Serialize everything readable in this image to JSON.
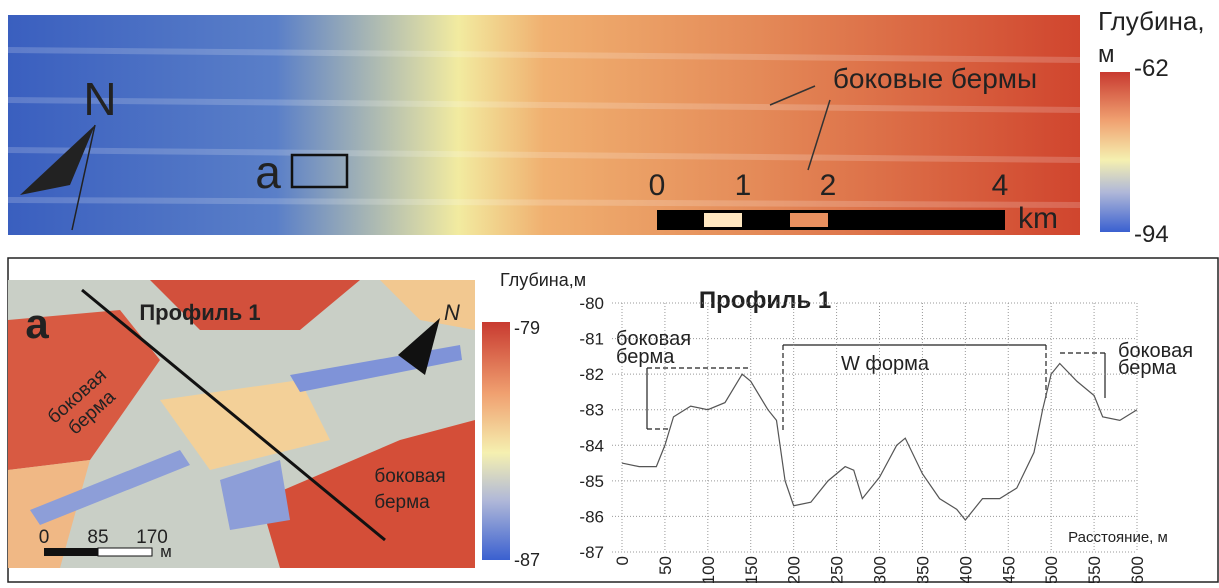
{
  "map": {
    "north": "N",
    "area_label": "a",
    "annotation": "боковые бермы",
    "scale_labels": [
      0,
      1,
      2,
      4
    ],
    "scale_unit": "km",
    "legend_title": "Глубина,",
    "legend_unit": "м",
    "legend_max": -62,
    "legend_min": -94
  },
  "inset": {
    "label": "a",
    "profile_label": "Профиль 1",
    "annotations": [
      [
        "боковая",
        "берма"
      ],
      [
        "боковая",
        "берма"
      ]
    ],
    "scale_labels": [
      0,
      85,
      170
    ],
    "scale_unit": "м",
    "legend_max": -79,
    "legend_min": -87
  },
  "chart_data": {
    "type": "line",
    "title": "Профиль 1",
    "y_label": "Глубина,м",
    "x_label": "Расстояние, м",
    "annotations": [
      [
        "боковая",
        "берма"
      ],
      "W форма",
      [
        "боковая",
        "берма"
      ]
    ],
    "x": [
      0,
      20,
      40,
      50,
      60,
      80,
      100,
      120,
      140,
      150,
      170,
      180,
      190,
      200,
      220,
      240,
      260,
      270,
      280,
      300,
      320,
      330,
      350,
      370,
      390,
      400,
      420,
      440,
      460,
      480,
      490,
      500,
      510,
      530,
      550,
      560,
      580,
      600
    ],
    "values": [
      -84.5,
      -84.6,
      -84.6,
      -84,
      -83.2,
      -82.9,
      -83,
      -82.8,
      -82,
      -82.2,
      -83,
      -83.3,
      -85,
      -85.7,
      -85.6,
      -85,
      -84.6,
      -84.7,
      -85.5,
      -84.9,
      -84,
      -83.8,
      -84.8,
      -85.5,
      -85.8,
      -86.1,
      -85.5,
      -85.5,
      -85.2,
      -84.2,
      -83,
      -82,
      -81.7,
      -82.2,
      -82.6,
      -83.2,
      -83.3,
      -83
    ],
    "color": "#555555",
    "xlim": [
      0,
      600
    ],
    "ylim": [
      -87,
      -80
    ],
    "xticks": [
      0,
      50,
      100,
      150,
      200,
      250,
      300,
      350,
      400,
      450,
      500,
      550,
      600
    ],
    "yticks": [
      -87,
      -86,
      -85,
      -84,
      -83,
      -82,
      -81,
      -80
    ],
    "grid": true
  }
}
